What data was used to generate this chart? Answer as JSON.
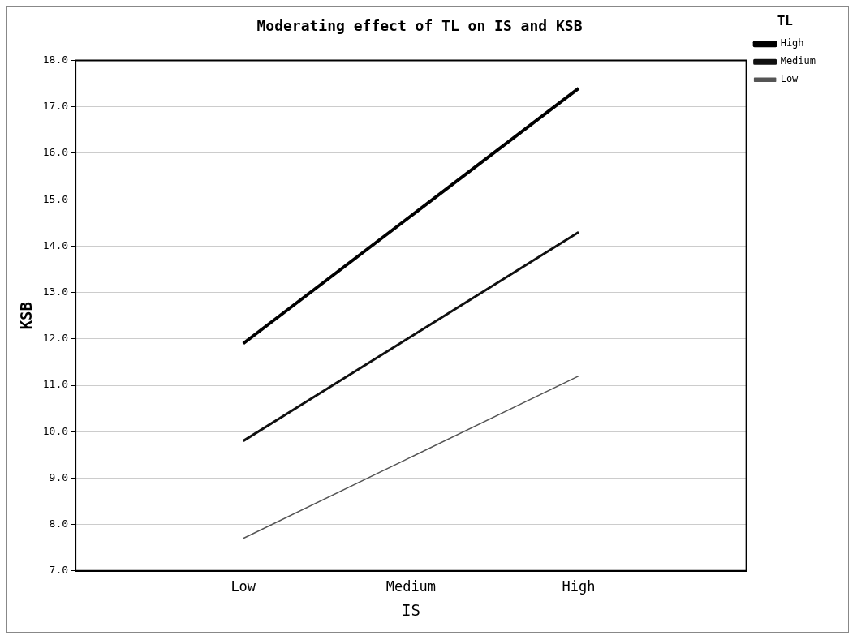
{
  "chart_data": {
    "type": "line",
    "title": "Moderating effect of TL on IS and KSB",
    "xlabel": "IS",
    "ylabel": "KSB",
    "legend_title": "TL",
    "categories": [
      "Low",
      "Medium",
      "High"
    ],
    "series": [
      {
        "name": "High",
        "color": "#000000",
        "values": [
          11.9,
          14.65,
          17.4
        ]
      },
      {
        "name": "Medium",
        "color": "#111111",
        "values": [
          9.8,
          12.05,
          14.3
        ]
      },
      {
        "name": "Low",
        "color": "#555555",
        "values": [
          7.7,
          9.45,
          11.2
        ]
      }
    ],
    "ylim": [
      7,
      18
    ],
    "yticks": [
      {
        "value": 7,
        "label": "7.0"
      },
      {
        "value": 8,
        "label": "8.0"
      },
      {
        "value": 9,
        "label": "9.0"
      },
      {
        "value": 10,
        "label": "10.0"
      },
      {
        "value": 11,
        "label": "11.0"
      },
      {
        "value": 12,
        "label": "12.0"
      },
      {
        "value": 13,
        "label": "13.0"
      },
      {
        "value": 14,
        "label": "14.0"
      },
      {
        "value": 15,
        "label": "15.0"
      },
      {
        "value": 16,
        "label": "16.0"
      },
      {
        "value": 17,
        "label": "17.0"
      },
      {
        "value": 18,
        "label": "18.0"
      }
    ],
    "grid": "y",
    "legend": "top right",
    "marker": "none",
    "line_style": "solid"
  }
}
